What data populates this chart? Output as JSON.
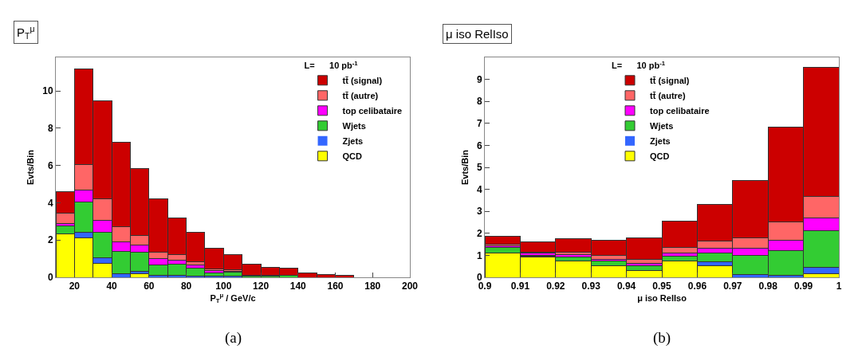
{
  "chart_data": [
    {
      "type": "bar",
      "title": "P$_{T}$$^{μ}$",
      "xlabel": "P$_{T}$$^{μ}$ / GeV/c",
      "ylabel": "Evts/Bin",
      "legend_title": "L=      10 pb$^{-1}$",
      "annotations": [
        "(a)"
      ],
      "x": [
        15,
        25,
        35,
        45,
        55,
        65,
        75,
        85,
        95,
        105,
        115,
        125,
        135,
        145,
        155,
        165,
        175,
        185,
        195
      ],
      "stacked": true,
      "series": [
        {
          "name": "QCD",
          "color": "#ffff00",
          "values": [
            2.35,
            2.1,
            0.75,
            0,
            0.2,
            0,
            0,
            0,
            0,
            0,
            0,
            0,
            0,
            0,
            0,
            0,
            0,
            0,
            0
          ]
        },
        {
          "name": "Zjets",
          "color": "#3366ff",
          "values": [
            null,
            0.3,
            0.3,
            0.2,
            0.1,
            0.1,
            0.1,
            0.05,
            0.05,
            0.05,
            0,
            0,
            0,
            0,
            0,
            0,
            0,
            0,
            0
          ]
        },
        {
          "name": "Wjets",
          "color": "#33cc33",
          "values": [
            0.4,
            1.65,
            1.35,
            1.2,
            1.05,
            0.55,
            0.6,
            0.45,
            0.2,
            0.21,
            0.05,
            0.05,
            0.1,
            0,
            0,
            0,
            0,
            0,
            0
          ]
        },
        {
          "name": "top celibataire",
          "color": "#ff00ff",
          "values": [
            0.15,
            0.65,
            0.65,
            0.5,
            0.4,
            0.35,
            0.2,
            0.15,
            0.1,
            0.05,
            0.05,
            0.05,
            0,
            0,
            0,
            0,
            0,
            0,
            0
          ]
        },
        {
          "name": "tt̄ (autre)",
          "color": "#ff6666",
          "values": [
            0.55,
            1.35,
            1.15,
            0.8,
            0.5,
            0.35,
            0.3,
            0.2,
            0.1,
            0.09,
            0,
            0,
            0,
            0,
            0,
            0,
            0,
            0,
            0
          ]
        },
        {
          "name": "tt̄ (signal)",
          "color": "#cc0000",
          "values": [
            1.15,
            5.15,
            5.25,
            4.55,
            3.6,
            2.85,
            2.0,
            1.55,
            1.1,
            0.84,
            0.62,
            0.43,
            0.38,
            0.23,
            0.17,
            0.12,
            0,
            0,
            0
          ]
        }
      ],
      "xlim": [
        10,
        200
      ],
      "xticks": [
        20,
        40,
        60,
        80,
        100,
        120,
        140,
        160,
        180,
        200
      ],
      "ylim": [
        0,
        11.8
      ],
      "yticks": [
        0,
        2,
        4,
        6,
        8,
        10
      ],
      "grid": false,
      "legend": "top right"
    },
    {
      "type": "bar",
      "title": "μ iso RelIso",
      "xlabel": "μ iso RelIso",
      "ylabel": "Evts/Bin",
      "legend_title": "L=      10 pb$^{-1}$",
      "annotations": [
        "(b)"
      ],
      "x": [
        0.905,
        0.915,
        0.925,
        0.935,
        0.945,
        0.955,
        0.965,
        0.975,
        0.985,
        0.995
      ],
      "stacked": true,
      "series": [
        {
          "name": "QCD",
          "color": "#ffff00",
          "values": [
            1.1,
            0.94,
            0.73,
            0.53,
            0.32,
            0.74,
            0.53,
            0,
            0,
            0.17
          ]
        },
        {
          "name": "Zjets",
          "color": "#3366ff",
          "values": [
            0,
            0.03,
            0,
            null,
            0,
            0,
            0.17,
            0.14,
            0.1,
            0.29
          ]
        },
        {
          "name": "Wjets",
          "color": "#33cc33",
          "values": [
            0.27,
            0.03,
            0.21,
            0.2,
            0.19,
            0.22,
            0.42,
            0.87,
            1.1,
            1.67
          ]
        },
        {
          "name": "top celibataire",
          "color": "#ff00ff",
          "values": [
            0.05,
            0.1,
            0.08,
            0.1,
            0.11,
            0.13,
            0.19,
            0.3,
            0.5,
            0.57
          ]
        },
        {
          "name": "tt̄ (autre)",
          "color": "#ff6666",
          "values": [
            0.08,
            0.05,
            0.13,
            0.16,
            0.18,
            0.27,
            0.35,
            0.48,
            0.83,
            0.98
          ]
        },
        {
          "name": "tt̄ (signal)",
          "color": "#cc0000",
          "values": [
            0.35,
            0.48,
            0.59,
            0.7,
            0.99,
            1.2,
            1.67,
            2.61,
            4.31,
            5.86
          ]
        }
      ],
      "xlim": [
        0.9,
        1
      ],
      "xticks": [
        0.9,
        0.91,
        0.92,
        0.93,
        0.94,
        0.95,
        0.96,
        0.97,
        0.98,
        0.99,
        1
      ],
      "ylim": [
        0,
        10
      ],
      "yticks": [
        0,
        1,
        2,
        3,
        4,
        5,
        6,
        7,
        8,
        9
      ],
      "grid": false,
      "legend": "top"
    }
  ]
}
